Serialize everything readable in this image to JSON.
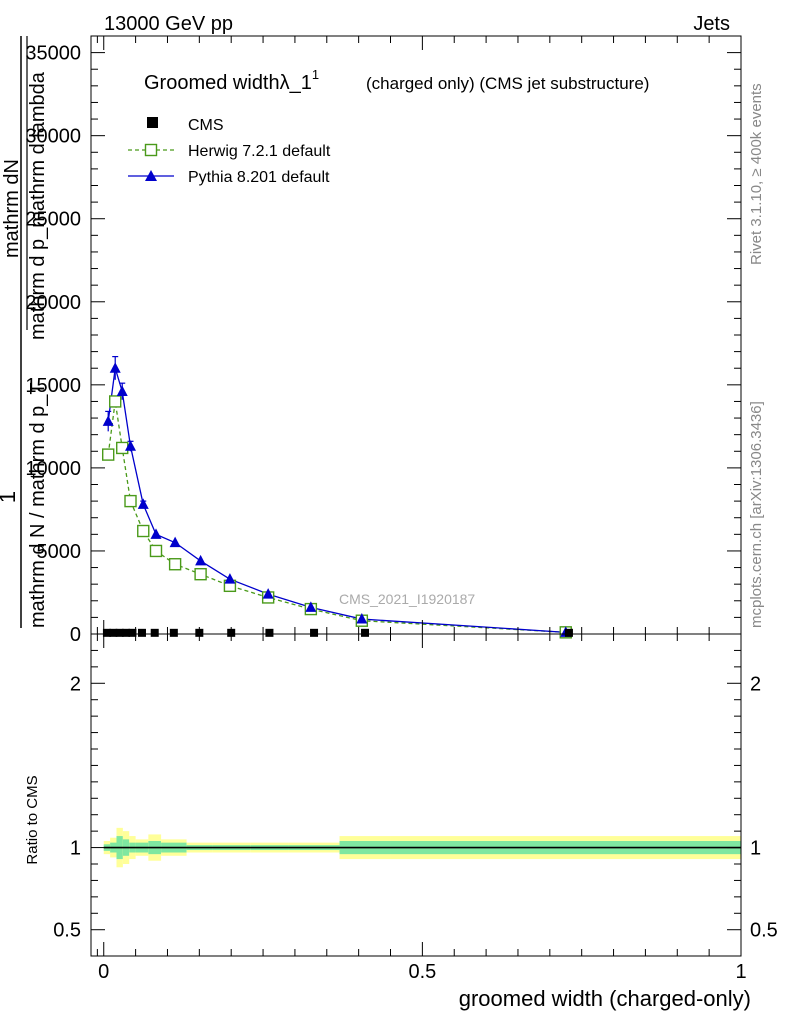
{
  "header": {
    "left": "13000 GeV pp",
    "right": "Jets"
  },
  "side_labels": {
    "rivet": "Rivet 3.1.10, ≥ 400k events",
    "mcplots": "mcplots.cern.ch [arXiv:1306.3436]"
  },
  "watermark": "CMS_2021_I1920187",
  "colors": {
    "cms": "#000000",
    "herwig": "#4a9a1a",
    "pythia": "#0000cc",
    "band_outer": "#ffff99",
    "band_inner": "#7fe7a0"
  },
  "chart_data": [
    {
      "type": "line",
      "panel": "main",
      "title": "Groomed widthλ_1",
      "title_sup": "1",
      "subtitle": "(charged only) (CMS jet substructure)",
      "ylabel_num": "mathrm dN",
      "ylabel_den": "mathrm d p_mathrm d lambda",
      "ylabel_pre_num": "1",
      "ylabel_pre_den": "mathrm d N / mathrm d p_T",
      "xlim": [
        -0.02,
        1.0
      ],
      "ylim": [
        0,
        36000
      ],
      "yticks": [
        0,
        5000,
        10000,
        15000,
        20000,
        25000,
        30000,
        35000
      ],
      "ytick_labels": [
        "0",
        "5000",
        "10000",
        "15000",
        "20000",
        "25000",
        "30000",
        "35000"
      ],
      "legend_position": "top-left",
      "series": [
        {
          "name": "CMS",
          "marker": "filled-square",
          "x": [
            0.005,
            0.015,
            0.025,
            0.035,
            0.045,
            0.06,
            0.08,
            0.11,
            0.15,
            0.2,
            0.26,
            0.33,
            0.41,
            0.73
          ],
          "y": [
            10,
            10,
            10,
            10,
            10,
            10,
            10,
            10,
            10,
            10,
            10,
            10,
            10,
            10
          ]
        },
        {
          "name": "Herwig 7.2.1 default",
          "marker": "open-square",
          "line": "dashed",
          "x": [
            0.007,
            0.018,
            0.029,
            0.042,
            0.062,
            0.082,
            0.112,
            0.152,
            0.198,
            0.258,
            0.325,
            0.405,
            0.725
          ],
          "y": [
            10800,
            14000,
            11200,
            8000,
            6200,
            5000,
            4200,
            3600,
            2900,
            2200,
            1500,
            800,
            100
          ]
        },
        {
          "name": "Pythia 8.201 default",
          "marker": "filled-triangle",
          "line": "solid",
          "x": [
            0.007,
            0.018,
            0.029,
            0.042,
            0.062,
            0.082,
            0.112,
            0.152,
            0.198,
            0.258,
            0.325,
            0.405,
            0.725
          ],
          "y": [
            12800,
            16000,
            14600,
            11300,
            7800,
            6000,
            5500,
            4400,
            3300,
            2400,
            1600,
            900,
            100
          ],
          "yerr": [
            600,
            700,
            500,
            300,
            200,
            0,
            0,
            0,
            0,
            0,
            0,
            0,
            0
          ]
        }
      ]
    },
    {
      "type": "line",
      "panel": "ratio",
      "ylabel": "Ratio to CMS",
      "xlabel": "groomed width (charged-only)",
      "xlim": [
        -0.02,
        1.0
      ],
      "ylim": [
        0.34,
        2.3
      ],
      "yticks": [
        0.5,
        1,
        2
      ],
      "ytick_labels": [
        "0.5",
        "1",
        "2"
      ],
      "xticks": [
        0,
        0.5,
        1
      ],
      "xtick_labels": [
        "0",
        "0.5",
        "1"
      ],
      "reference": 1.0,
      "bands": {
        "edges": [
          0,
          0.01,
          0.02,
          0.03,
          0.04,
          0.05,
          0.07,
          0.09,
          0.13,
          0.17,
          0.23,
          0.29,
          0.37,
          0.45,
          1.0
        ],
        "outer": [
          0.04,
          0.06,
          0.12,
          0.1,
          0.07,
          0.05,
          0.08,
          0.05,
          0.03,
          0.03,
          0.03,
          0.03,
          0.07,
          0.07
        ],
        "inner": [
          0.02,
          0.03,
          0.07,
          0.05,
          0.03,
          0.03,
          0.04,
          0.03,
          0.015,
          0.015,
          0.015,
          0.015,
          0.04,
          0.04
        ]
      }
    }
  ]
}
